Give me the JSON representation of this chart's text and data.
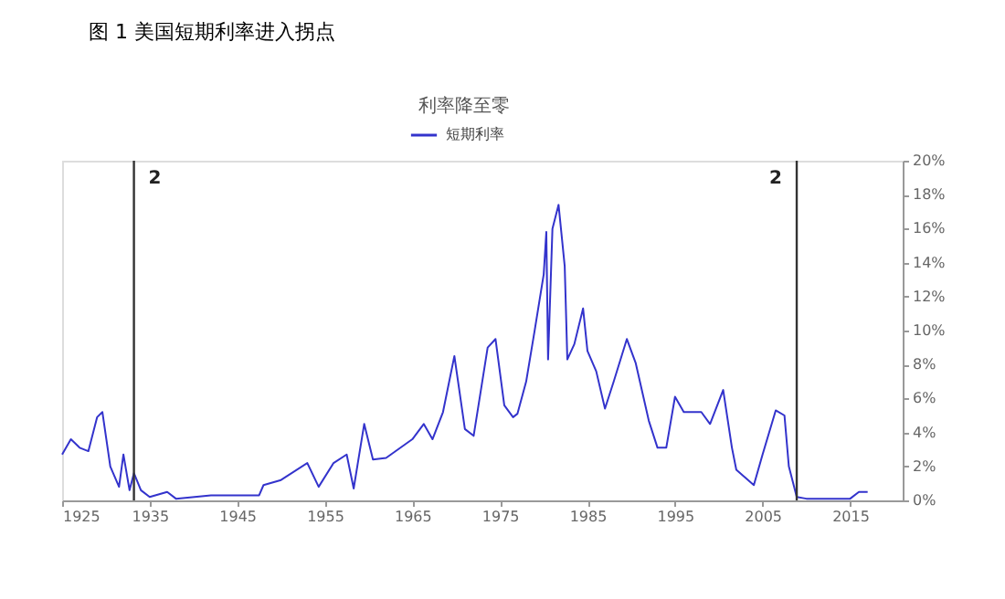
{
  "chart_data": {
    "type": "line",
    "title": "图 1 美国短期利率进入拐点",
    "subtitle": "利率降至零",
    "x": [
      1925,
      1926,
      1927,
      1928,
      1929,
      1929.6,
      1930.5,
      1931.5,
      1932,
      1932.7,
      1933.2,
      1934,
      1935,
      1937,
      1938,
      1942,
      1947.5,
      1948,
      1950,
      1953,
      1954.3,
      1956,
      1957.5,
      1958.3,
      1959.5,
      1960.5,
      1962,
      1965,
      1966.3,
      1967.3,
      1968.5,
      1969.8,
      1971,
      1972,
      1973.6,
      1974.5,
      1975.5,
      1976.5,
      1977,
      1978,
      1979,
      1980,
      1980.3,
      1980.5,
      1981,
      1981.7,
      1982.4,
      1982.7,
      1983.5,
      1984.5,
      1985,
      1986,
      1987,
      1988,
      1989.5,
      1990.5,
      1992,
      1993,
      1994,
      1995,
      1996,
      1998,
      1999,
      2000.5,
      2001.5,
      2002,
      2004,
      2005,
      2006.5,
      2007.5,
      2008,
      2008.9,
      2010,
      2015,
      2016,
      2017
    ],
    "series": [
      {
        "name": "短期利率",
        "color": "#3333cc",
        "values": [
          2.7,
          3.6,
          3.1,
          2.9,
          4.9,
          5.2,
          2.0,
          0.8,
          2.7,
          0.6,
          1.6,
          0.6,
          0.2,
          0.5,
          0.1,
          0.3,
          0.3,
          0.9,
          1.2,
          2.2,
          0.8,
          2.2,
          2.7,
          0.7,
          4.5,
          2.4,
          2.5,
          3.6,
          4.5,
          3.6,
          5.2,
          8.5,
          4.2,
          3.8,
          9.0,
          9.5,
          5.6,
          4.9,
          5.1,
          7.0,
          10.1,
          13.3,
          15.8,
          8.3,
          16.0,
          17.4,
          13.8,
          8.3,
          9.2,
          11.3,
          8.8,
          7.6,
          5.4,
          7.0,
          9.5,
          8.1,
          4.7,
          3.1,
          3.1,
          6.1,
          5.2,
          5.2,
          4.5,
          6.5,
          3.1,
          1.8,
          0.9,
          2.7,
          5.3,
          5.0,
          2.0,
          0.2,
          0.1,
          0.1,
          0.5,
          0.5
        ]
      }
    ],
    "xlim": [
      1925,
      2021
    ],
    "xticks": [
      1925,
      1935,
      1945,
      1955,
      1965,
      1975,
      1985,
      1995,
      2005,
      2015
    ],
    "ylim": [
      0,
      20
    ],
    "yticks": [
      {
        "value": 0,
        "label": "0%"
      },
      {
        "value": 2,
        "label": "2%"
      },
      {
        "value": 4,
        "label": "4%"
      },
      {
        "value": 6,
        "label": "6%"
      },
      {
        "value": 8,
        "label": "8%"
      },
      {
        "value": 10,
        "label": "10%"
      },
      {
        "value": 12,
        "label": "12%"
      },
      {
        "value": 14,
        "label": "14%"
      },
      {
        "value": 16,
        "label": "16%"
      },
      {
        "value": 18,
        "label": "18%"
      },
      {
        "value": 20,
        "label": "20%"
      }
    ],
    "ref_lines": [
      {
        "axis": "x",
        "value": 1933.2,
        "color": "#333333"
      },
      {
        "axis": "x",
        "value": 2008.9,
        "color": "#333333"
      }
    ],
    "annotations": [
      {
        "text": "2",
        "x": 1933.2,
        "y": 19
      },
      {
        "text": "2",
        "x": 2008.9,
        "y": 19
      }
    ],
    "legend": "top",
    "grid": false,
    "marker": "none",
    "line_style": "solid"
  }
}
